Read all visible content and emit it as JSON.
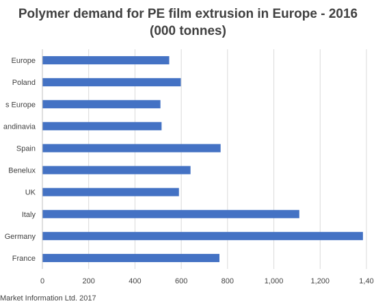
{
  "chart_data": {
    "type": "bar",
    "orientation": "horizontal",
    "title_line1": "Polymer demand for PE film extrusion in Europe - 2016",
    "title_line2": "(000 tonnes)",
    "categories": [
      "France",
      "Germany",
      "Italy",
      "UK",
      "Benelux",
      "Spain",
      "andinavia",
      "s Europe",
      "Poland",
      "Europe"
    ],
    "values": [
      765,
      1385,
      1110,
      590,
      640,
      770,
      515,
      510,
      598,
      548
    ],
    "x_ticks": [
      "0",
      "200",
      "400",
      "600",
      "800",
      "1,000",
      "1,200",
      "1,40"
    ],
    "xlim": [
      0,
      1400
    ],
    "grid": true,
    "bar_color": "#4472c4",
    "grid_color": "#d9d9d9"
  },
  "source_note": "Market Information Ltd. 2017"
}
